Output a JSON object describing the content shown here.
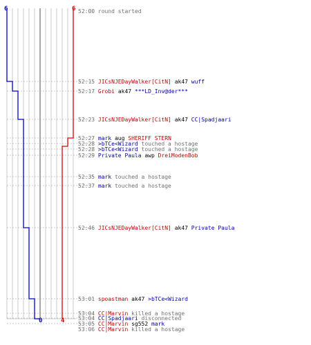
{
  "teams": {
    "blue": {
      "color": "#0000cc",
      "start_count": "6",
      "end_count": "0"
    },
    "red": {
      "color": "#dd0000",
      "start_count": "6",
      "end_count": "4"
    }
  },
  "events": [
    {
      "time": "52:00",
      "parts": [
        {
          "text": "round started",
          "c": "gray"
        }
      ]
    },
    {
      "time": "52:15",
      "parts": [
        {
          "text": "JICsNJEDayWalker[CitN]",
          "c": "red"
        },
        {
          "text": " ak47 ",
          "c": "plain"
        },
        {
          "text": "wuff",
          "c": "blue"
        }
      ]
    },
    {
      "time": "52:17",
      "parts": [
        {
          "text": "Grobi",
          "c": "red"
        },
        {
          "text": " ak47 ",
          "c": "plain"
        },
        {
          "text": "***LD_Inv@der***",
          "c": "blue"
        }
      ]
    },
    {
      "time": "52:23",
      "parts": [
        {
          "text": "JICsNJEDayWalker[CitN]",
          "c": "red"
        },
        {
          "text": " ak47 ",
          "c": "plain"
        },
        {
          "text": "CC|Spadjaari",
          "c": "blue"
        }
      ]
    },
    {
      "time": "52:27",
      "parts": [
        {
          "text": "mark",
          "c": "blue"
        },
        {
          "text": " aug ",
          "c": "plain"
        },
        {
          "text": "SHERIFF STERN",
          "c": "red"
        }
      ]
    },
    {
      "time": "52:28",
      "parts": [
        {
          "text": ">bTCe<Wizard",
          "c": "blue"
        },
        {
          "text": " touched a hostage",
          "c": "gray"
        }
      ]
    },
    {
      "time": "52:28",
      "parts": [
        {
          "text": ">bTCe<Wizard",
          "c": "blue"
        },
        {
          "text": " touched a hostage",
          "c": "gray"
        }
      ]
    },
    {
      "time": "52:29",
      "parts": [
        {
          "text": "Private Paula",
          "c": "blue"
        },
        {
          "text": " awp ",
          "c": "plain"
        },
        {
          "text": "DreiModenBob",
          "c": "red"
        }
      ]
    },
    {
      "time": "52:35",
      "parts": [
        {
          "text": "mark",
          "c": "blue"
        },
        {
          "text": " touched a hostage",
          "c": "gray"
        }
      ]
    },
    {
      "time": "52:37",
      "parts": [
        {
          "text": "mark",
          "c": "blue"
        },
        {
          "text": " touched a hostage",
          "c": "gray"
        }
      ]
    },
    {
      "time": "52:46",
      "parts": [
        {
          "text": "JICsNJEDayWalker[CitN]",
          "c": "red"
        },
        {
          "text": " ak47 ",
          "c": "plain"
        },
        {
          "text": "Private Paula",
          "c": "blue"
        }
      ]
    },
    {
      "time": "53:01",
      "parts": [
        {
          "text": "spoastman",
          "c": "red"
        },
        {
          "text": " ak47 ",
          "c": "plain"
        },
        {
          "text": ">bTCe<Wizard",
          "c": "blue"
        }
      ]
    },
    {
      "time": "53:04",
      "parts": [
        {
          "text": "CC|Marvin",
          "c": "red"
        },
        {
          "text": " killed a hostage",
          "c": "gray"
        }
      ]
    },
    {
      "time": "53:04",
      "parts": [
        {
          "text": "CC|Spadjaari",
          "c": "blue"
        },
        {
          "text": " disconnected",
          "c": "gray"
        }
      ]
    },
    {
      "time": "53:05",
      "parts": [
        {
          "text": "CC|Marvin",
          "c": "red"
        },
        {
          "text": " sg552 ",
          "c": "plain"
        },
        {
          "text": "mark",
          "c": "blue"
        }
      ]
    },
    {
      "time": "53:06",
      "parts": [
        {
          "text": "CC|Marvin",
          "c": "red"
        },
        {
          "text": " killed a hostage",
          "c": "gray"
        }
      ]
    }
  ]
}
